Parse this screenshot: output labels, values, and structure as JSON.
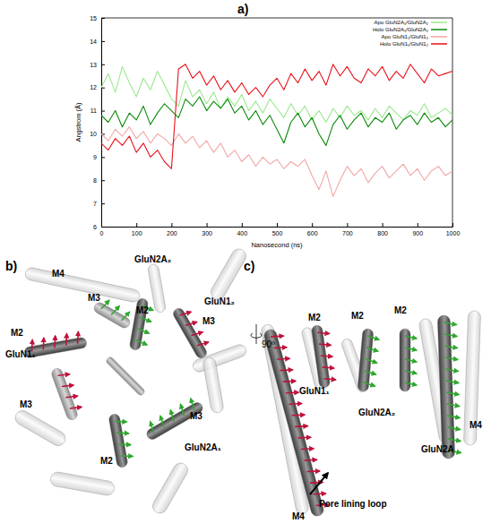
{
  "chart_data": {
    "type": "line",
    "x_label": "Nanosecond (ns)",
    "y_label": "Angstrom (Å)",
    "x": [
      0,
      20,
      40,
      60,
      80,
      100,
      120,
      140,
      160,
      180,
      200,
      220,
      240,
      260,
      280,
      300,
      320,
      340,
      360,
      380,
      400,
      420,
      440,
      460,
      480,
      500,
      520,
      540,
      560,
      580,
      600,
      620,
      640,
      660,
      680,
      700,
      720,
      740,
      760,
      780,
      800,
      820,
      840,
      860,
      880,
      900,
      920,
      940,
      960,
      980,
      1000
    ],
    "series": [
      {
        "name": "Apo GluN2A₁/GluN2A₂",
        "color": "#9be88f",
        "values": [
          12.0,
          12.6,
          11.8,
          12.9,
          12.2,
          11.6,
          12.4,
          11.9,
          12.7,
          12.1,
          11.5,
          11.2,
          12.3,
          11.6,
          11.9,
          11.3,
          11.8,
          11.1,
          11.6,
          11.2,
          11.7,
          11.0,
          11.4,
          10.9,
          11.5,
          11.1,
          10.7,
          11.3,
          10.8,
          11.2,
          10.6,
          11.0,
          10.5,
          11.1,
          10.7,
          11.2,
          10.8,
          11.0,
          10.6,
          11.1,
          10.7,
          11.2,
          10.9,
          10.6,
          11.0,
          10.8,
          11.3,
          10.7,
          10.9,
          11.1,
          10.8
        ]
      },
      {
        "name": "Holo GluN2A₁/GluN2A₂",
        "color": "#0a8a0a",
        "values": [
          10.8,
          10.5,
          11.0,
          10.3,
          10.9,
          10.6,
          11.2,
          10.4,
          10.9,
          11.3,
          11.0,
          10.7,
          11.5,
          11.2,
          11.6,
          11.0,
          11.4,
          11.1,
          11.5,
          10.9,
          11.2,
          10.6,
          11.0,
          10.4,
          10.8,
          10.2,
          9.6,
          10.5,
          10.9,
          10.3,
          10.7,
          10.0,
          9.5,
          10.4,
          10.8,
          10.2,
          10.6,
          10.9,
          10.3,
          10.7,
          10.5,
          10.9,
          10.2,
          10.6,
          10.8,
          10.4,
          10.9,
          10.5,
          10.7,
          10.3,
          10.6
        ]
      },
      {
        "name": "Apo GluN1₁/GluN1₂",
        "color": "#f2a6a6",
        "values": [
          10.0,
          9.7,
          10.2,
          9.9,
          10.3,
          9.8,
          10.1,
          9.6,
          10.0,
          9.8,
          9.5,
          10.0,
          9.6,
          9.9,
          9.4,
          9.7,
          9.2,
          9.6,
          9.0,
          9.3,
          8.8,
          9.1,
          8.6,
          9.0,
          8.7,
          8.9,
          8.5,
          8.8,
          8.6,
          8.9,
          8.2,
          7.6,
          8.4,
          7.3,
          8.0,
          8.6,
          8.2,
          8.5,
          7.9,
          8.3,
          8.6,
          8.1,
          8.4,
          8.7,
          8.2,
          8.5,
          8.0,
          8.4,
          8.6,
          8.2,
          8.4
        ]
      },
      {
        "name": "Holo GluN1₁/GluN1₂",
        "color": "#e8101a",
        "values": [
          9.6,
          9.3,
          9.8,
          9.5,
          9.9,
          9.2,
          9.6,
          9.0,
          9.3,
          8.8,
          8.5,
          12.8,
          13.0,
          12.4,
          12.7,
          12.1,
          12.5,
          11.9,
          12.3,
          11.8,
          12.2,
          11.7,
          12.0,
          11.6,
          12.1,
          12.4,
          11.9,
          12.6,
          12.2,
          12.8,
          12.3,
          12.7,
          12.1,
          13.0,
          12.5,
          12.9,
          12.4,
          12.2,
          12.8,
          12.5,
          12.9,
          12.3,
          12.7,
          12.4,
          13.0,
          12.6,
          12.2,
          12.8,
          12.5,
          12.6,
          12.7
        ]
      }
    ],
    "xlim": [
      0,
      1000
    ],
    "xticks": [
      0,
      100,
      200,
      300,
      400,
      500,
      600,
      700,
      800,
      900,
      1000
    ],
    "ylim": [
      6,
      15
    ],
    "yticks": [
      6,
      7,
      8,
      9,
      10,
      11,
      12,
      13,
      14,
      15
    ],
    "grid": false,
    "legend": "upper right"
  },
  "figure": {
    "panel_labels": [
      "a)",
      "b)",
      "c)"
    ],
    "panel_b": {
      "labels": [
        "GluN2A₂",
        "M4",
        "M3",
        "M2",
        "GluN1₂",
        "M3",
        "M2",
        "GluN1₁",
        "M3",
        "M3",
        "GluN2A₁",
        "M2"
      ]
    },
    "panel_c": {
      "labels": [
        "M2",
        "M2",
        "M2",
        "GluN1₁",
        "GluN2A₂",
        "GluN2A",
        "M4",
        "M4"
      ],
      "rotation": "90º",
      "annotation": "Pore lining loop"
    }
  }
}
